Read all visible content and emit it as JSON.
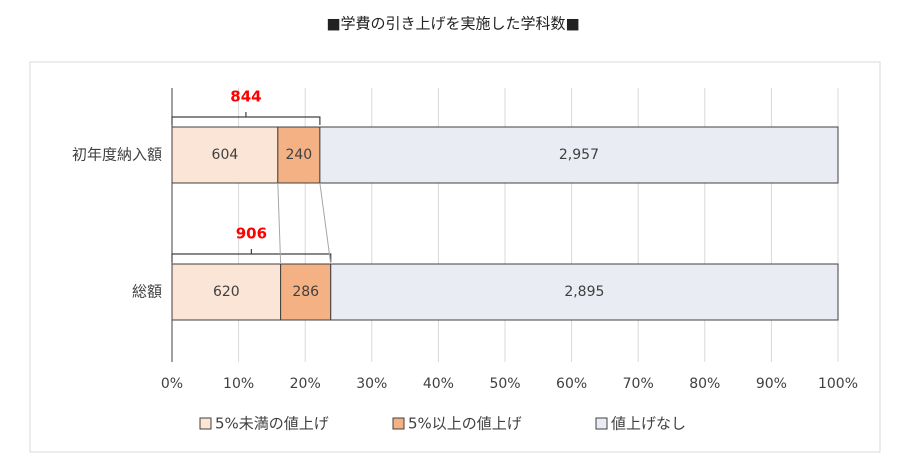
{
  "chart_data": {
    "type": "bar",
    "orientation": "horizontal",
    "stacking": "percent",
    "title": "■学費の引き上げを実施した学科数■",
    "categories": [
      "初年度納入額",
      "総額"
    ],
    "series": [
      {
        "name": "5%未満の値上げ",
        "color": "#fbe5d6",
        "values": [
          604,
          620
        ]
      },
      {
        "name": "5%以上の値上げ",
        "color": "#f4b183",
        "values": [
          240,
          286
        ]
      },
      {
        "name": "値上げなし",
        "color": "#e9ecf2",
        "values": [
          2957,
          2895
        ],
        "value_labels": [
          "2,957",
          "2,895"
        ]
      }
    ],
    "totals": [
      844,
      906
    ],
    "totals_color": "#ff0000",
    "xlim": [
      0,
      100
    ],
    "xticks": [
      {
        "value": 0,
        "label": "0%"
      },
      {
        "value": 10,
        "label": "10%"
      },
      {
        "value": 20,
        "label": "20%"
      },
      {
        "value": 30,
        "label": "30%"
      },
      {
        "value": 40,
        "label": "40%"
      },
      {
        "value": 50,
        "label": "50%"
      },
      {
        "value": 60,
        "label": "60%"
      },
      {
        "value": 70,
        "label": "70%"
      },
      {
        "value": 80,
        "label": "80%"
      },
      {
        "value": 90,
        "label": "90%"
      },
      {
        "value": 100,
        "label": "100%"
      }
    ],
    "grid": true,
    "legend": "bottom"
  }
}
